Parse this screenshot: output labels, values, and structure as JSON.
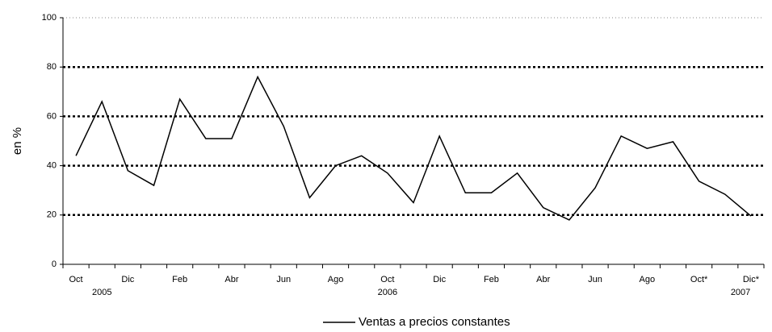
{
  "chart_data": {
    "type": "line",
    "y_label": "en %",
    "categories": [
      "Oct",
      null,
      "Dic",
      null,
      "Feb",
      null,
      "Abr",
      null,
      "Jun",
      null,
      "Ago",
      null,
      "Oct",
      null,
      "Dic",
      null,
      "Feb",
      null,
      "Abr",
      null,
      "Jun",
      null,
      "Ago",
      null,
      "Oct*",
      null,
      "Dic*"
    ],
    "year_labels": [
      "2005",
      "2006",
      "2007"
    ],
    "series": [
      {
        "name": "Ventas a precios constantes",
        "color": "#000000",
        "values": [
          44,
          66,
          38,
          32,
          67,
          51,
          51,
          76,
          56,
          27,
          40,
          44,
          37,
          25,
          52,
          29,
          29,
          37,
          23,
          18,
          31,
          52,
          47,
          49.7,
          33.7,
          28.4,
          19.6
        ]
      }
    ],
    "ylim": [
      0,
      100
    ],
    "yticks": [
      0,
      20,
      40,
      60,
      80,
      100
    ],
    "grid": true,
    "legend": "bottom"
  }
}
